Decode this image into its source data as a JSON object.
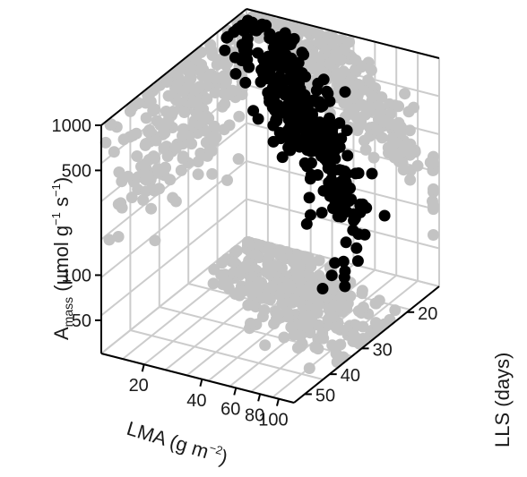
{
  "chart_data": {
    "type": "scatter",
    "projection": "3d",
    "grid": true,
    "log_axes": [
      "x",
      "y",
      "z"
    ],
    "axes": {
      "x": {
        "label_main": "LMA (g m",
        "label_sup": "−2",
        "label_close": ")",
        "ticks": [
          "20",
          "40",
          "60",
          "80",
          "100"
        ],
        "tick_values": [
          20,
          40,
          60,
          80,
          100
        ],
        "range": [
          12,
          120
        ]
      },
      "y": {
        "label_main": "LLS (days)",
        "ticks": [
          "20",
          "30",
          "40",
          "50"
        ],
        "tick_values": [
          20,
          30,
          40,
          50
        ],
        "range": [
          15,
          55
        ]
      },
      "z": {
        "label_a": "A",
        "label_sub": "mass",
        "label_b": " (µmol g",
        "label_sup1": "−1",
        "label_c": " s",
        "label_sup2": "−1",
        "label_d": ")",
        "ticks": [
          "50",
          "100",
          "500",
          "1000"
        ],
        "tick_values": [
          50,
          100,
          500,
          1000
        ],
        "range": [
          30,
          1000
        ]
      }
    },
    "series": [
      {
        "role": "observations",
        "color": "#000000",
        "clouds": [
          {
            "n": 330,
            "x_center": 38,
            "x_spread": 0.28,
            "y_center": 22,
            "y_spread": 0.18,
            "z_center": 500,
            "z_spread": 0.28,
            "correlation": "y-up-z-down"
          }
        ]
      },
      {
        "role": "wall-projections",
        "color": "#c3c3c3",
        "clouds": [
          {
            "plane": "y-z (left wall, x = 12)",
            "n": 260,
            "y_center": 26,
            "y_spread": 0.25,
            "z_center": 450,
            "z_spread": 0.32
          },
          {
            "plane": "x-z (back wall, y = 15)",
            "n": 330,
            "x_center": 38,
            "x_spread": 0.28,
            "z_center": 500,
            "z_spread": 0.28
          },
          {
            "plane": "x-y (floor, z = 30)",
            "n": 330,
            "x_center": 38,
            "x_spread": 0.28,
            "y_center": 22,
            "y_spread": 0.18
          }
        ]
      }
    ],
    "colors": {
      "points": "#000000",
      "projections": "#c3c3c3",
      "grid": "#cccccc",
      "box": "#000000"
    }
  }
}
